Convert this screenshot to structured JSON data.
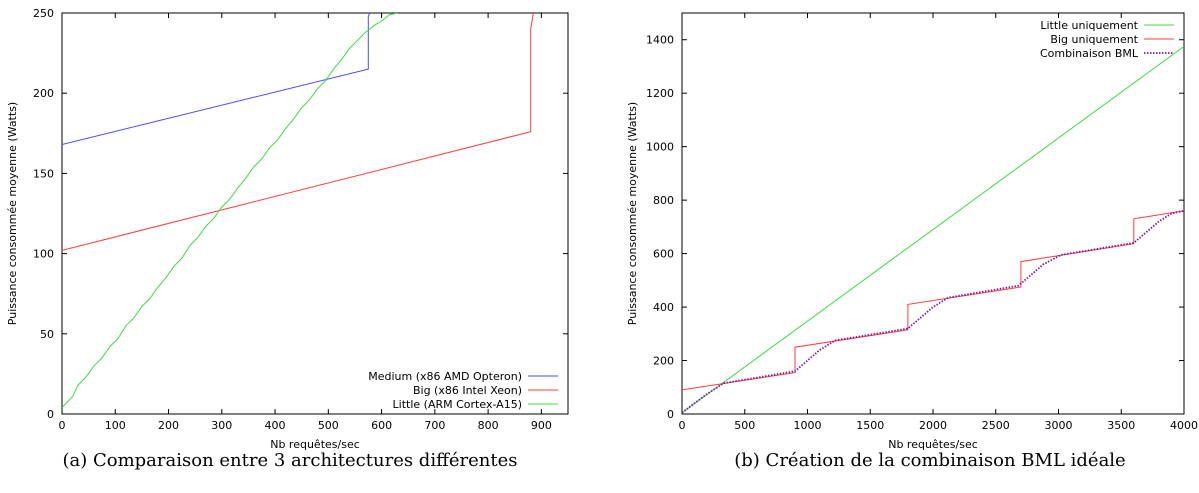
{
  "chart_data": [
    {
      "type": "line",
      "caption": "(a) Comparaison entre 3 architectures différentes",
      "xlabel": "Nb requêtes/sec",
      "ylabel": "Puissance consommée moyenne (Watts)",
      "xlim": [
        0,
        950
      ],
      "ylim": [
        0,
        250
      ],
      "xticks": [
        0,
        100,
        200,
        300,
        400,
        500,
        600,
        700,
        800,
        900
      ],
      "yticks": [
        0,
        50,
        100,
        150,
        200,
        250
      ],
      "legend_position": "bottom-right",
      "grid": false,
      "series": [
        {
          "name": "Medium (x86 AMD Opteron)",
          "color": "#4b4bff",
          "style": "solid",
          "x": [
            0,
            575,
            575,
            578
          ],
          "y": [
            168,
            215,
            248,
            250
          ]
        },
        {
          "name": "Big (x86 Intel Xeon)",
          "color": "#ff3c3c",
          "style": "solid",
          "x": [
            0,
            880,
            880,
            885
          ],
          "y": [
            102,
            176,
            240,
            250
          ]
        },
        {
          "name": "Little (ARM Cortex-A15)",
          "color": "#3cdc3c",
          "style": "solid",
          "x": [
            0,
            20,
            30,
            45,
            60,
            75,
            90,
            105,
            120,
            135,
            150,
            165,
            180,
            195,
            210,
            225,
            240,
            255,
            270,
            285,
            300,
            315,
            330,
            345,
            360,
            375,
            390,
            405,
            420,
            435,
            450,
            465,
            480,
            495,
            510,
            525,
            540,
            555,
            570,
            585,
            600,
            615,
            630
          ],
          "y": [
            4,
            11,
            18,
            23,
            30,
            35,
            42,
            47,
            55,
            60,
            67,
            72,
            79,
            85,
            92,
            97,
            105,
            110,
            117,
            122,
            129,
            134,
            141,
            147,
            154,
            159,
            166,
            171,
            178,
            184,
            191,
            196,
            203,
            208,
            215,
            221,
            228,
            233,
            238,
            242,
            245,
            249,
            250
          ]
        }
      ]
    },
    {
      "type": "line",
      "caption": "(b) Création de la combinaison BML idéale",
      "xlabel": "Nb requêtes/sec",
      "ylabel": "Puissance consommée moyenne (Watts)",
      "xlim": [
        0,
        4000
      ],
      "ylim": [
        0,
        1500
      ],
      "xticks": [
        0,
        500,
        1000,
        1500,
        2000,
        2500,
        3000,
        3500,
        4000
      ],
      "yticks": [
        0,
        200,
        400,
        600,
        800,
        1000,
        1200,
        1400
      ],
      "legend_position": "top-right",
      "grid": false,
      "series": [
        {
          "name": "Little uniquement",
          "color": "#3cdc3c",
          "style": "solid",
          "x": [
            0,
            4000
          ],
          "y": [
            5,
            1375
          ]
        },
        {
          "name": "Big uniquement",
          "color": "#ff3c3c",
          "style": "solid",
          "x": [
            0,
            900,
            900,
            1800,
            1800,
            2700,
            2700,
            3600,
            3600,
            4000
          ],
          "y": [
            90,
            155,
            250,
            315,
            410,
            475,
            570,
            637,
            730,
            760
          ]
        },
        {
          "name": "Combinaison BML",
          "color": "#7a1aa8",
          "style": "dotted",
          "x": [
            0,
            100,
            200,
            300,
            330,
            900,
            1000,
            1100,
            1220,
            1800,
            1900,
            2000,
            2120,
            2680,
            2780,
            2880,
            3020,
            3600,
            3700,
            3800,
            3900,
            4000
          ],
          "y": [
            5,
            40,
            75,
            105,
            115,
            160,
            200,
            240,
            275,
            320,
            360,
            400,
            435,
            480,
            520,
            560,
            595,
            640,
            680,
            720,
            750,
            760
          ]
        }
      ]
    }
  ]
}
